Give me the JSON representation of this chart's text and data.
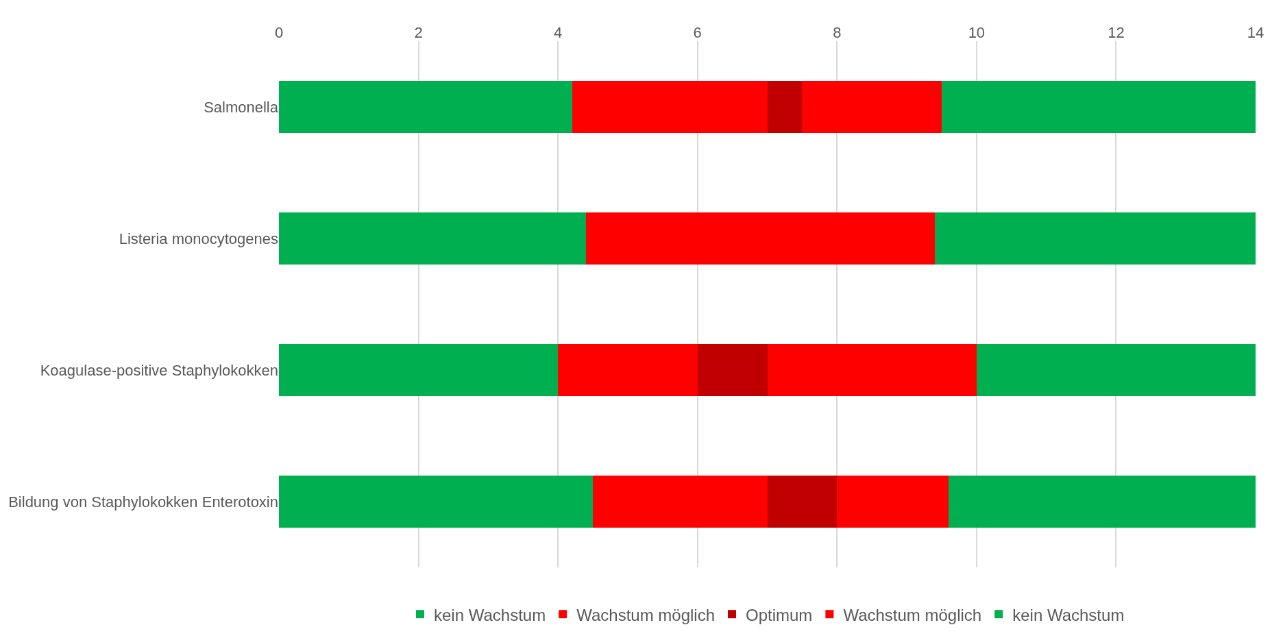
{
  "chart_data": {
    "type": "bar",
    "orientation": "horizontal",
    "stacked": true,
    "categories": [
      "Salmonella",
      "Listeria monocytogenes",
      "Koagulase-positive Staphylokokken",
      "Bildung von Staphylokokken Enterotoxin"
    ],
    "series": [
      {
        "name": "kein Wachstum",
        "color": "#00b050",
        "values": [
          4.2,
          4.4,
          4,
          4.5
        ]
      },
      {
        "name": "Wachstum möglich",
        "color": "#ff0000",
        "values": [
          2.8,
          2.6,
          2,
          2.5
        ]
      },
      {
        "name": "Optimum",
        "color": "#c00000",
        "values": [
          0.5,
          0,
          1,
          1
        ]
      },
      {
        "name": "Wachstum möglich",
        "color": "#ff0000",
        "values": [
          2,
          2.4,
          3,
          1.6
        ]
      },
      {
        "name": "kein Wachstum",
        "color": "#00b050",
        "values": [
          4.5,
          4.6,
          4,
          4.4
        ]
      }
    ],
    "xlim": [
      0,
      14
    ],
    "xticks": [
      0,
      2,
      4,
      6,
      8,
      10,
      12,
      14
    ],
    "grid": "x",
    "legend": "bottom"
  }
}
